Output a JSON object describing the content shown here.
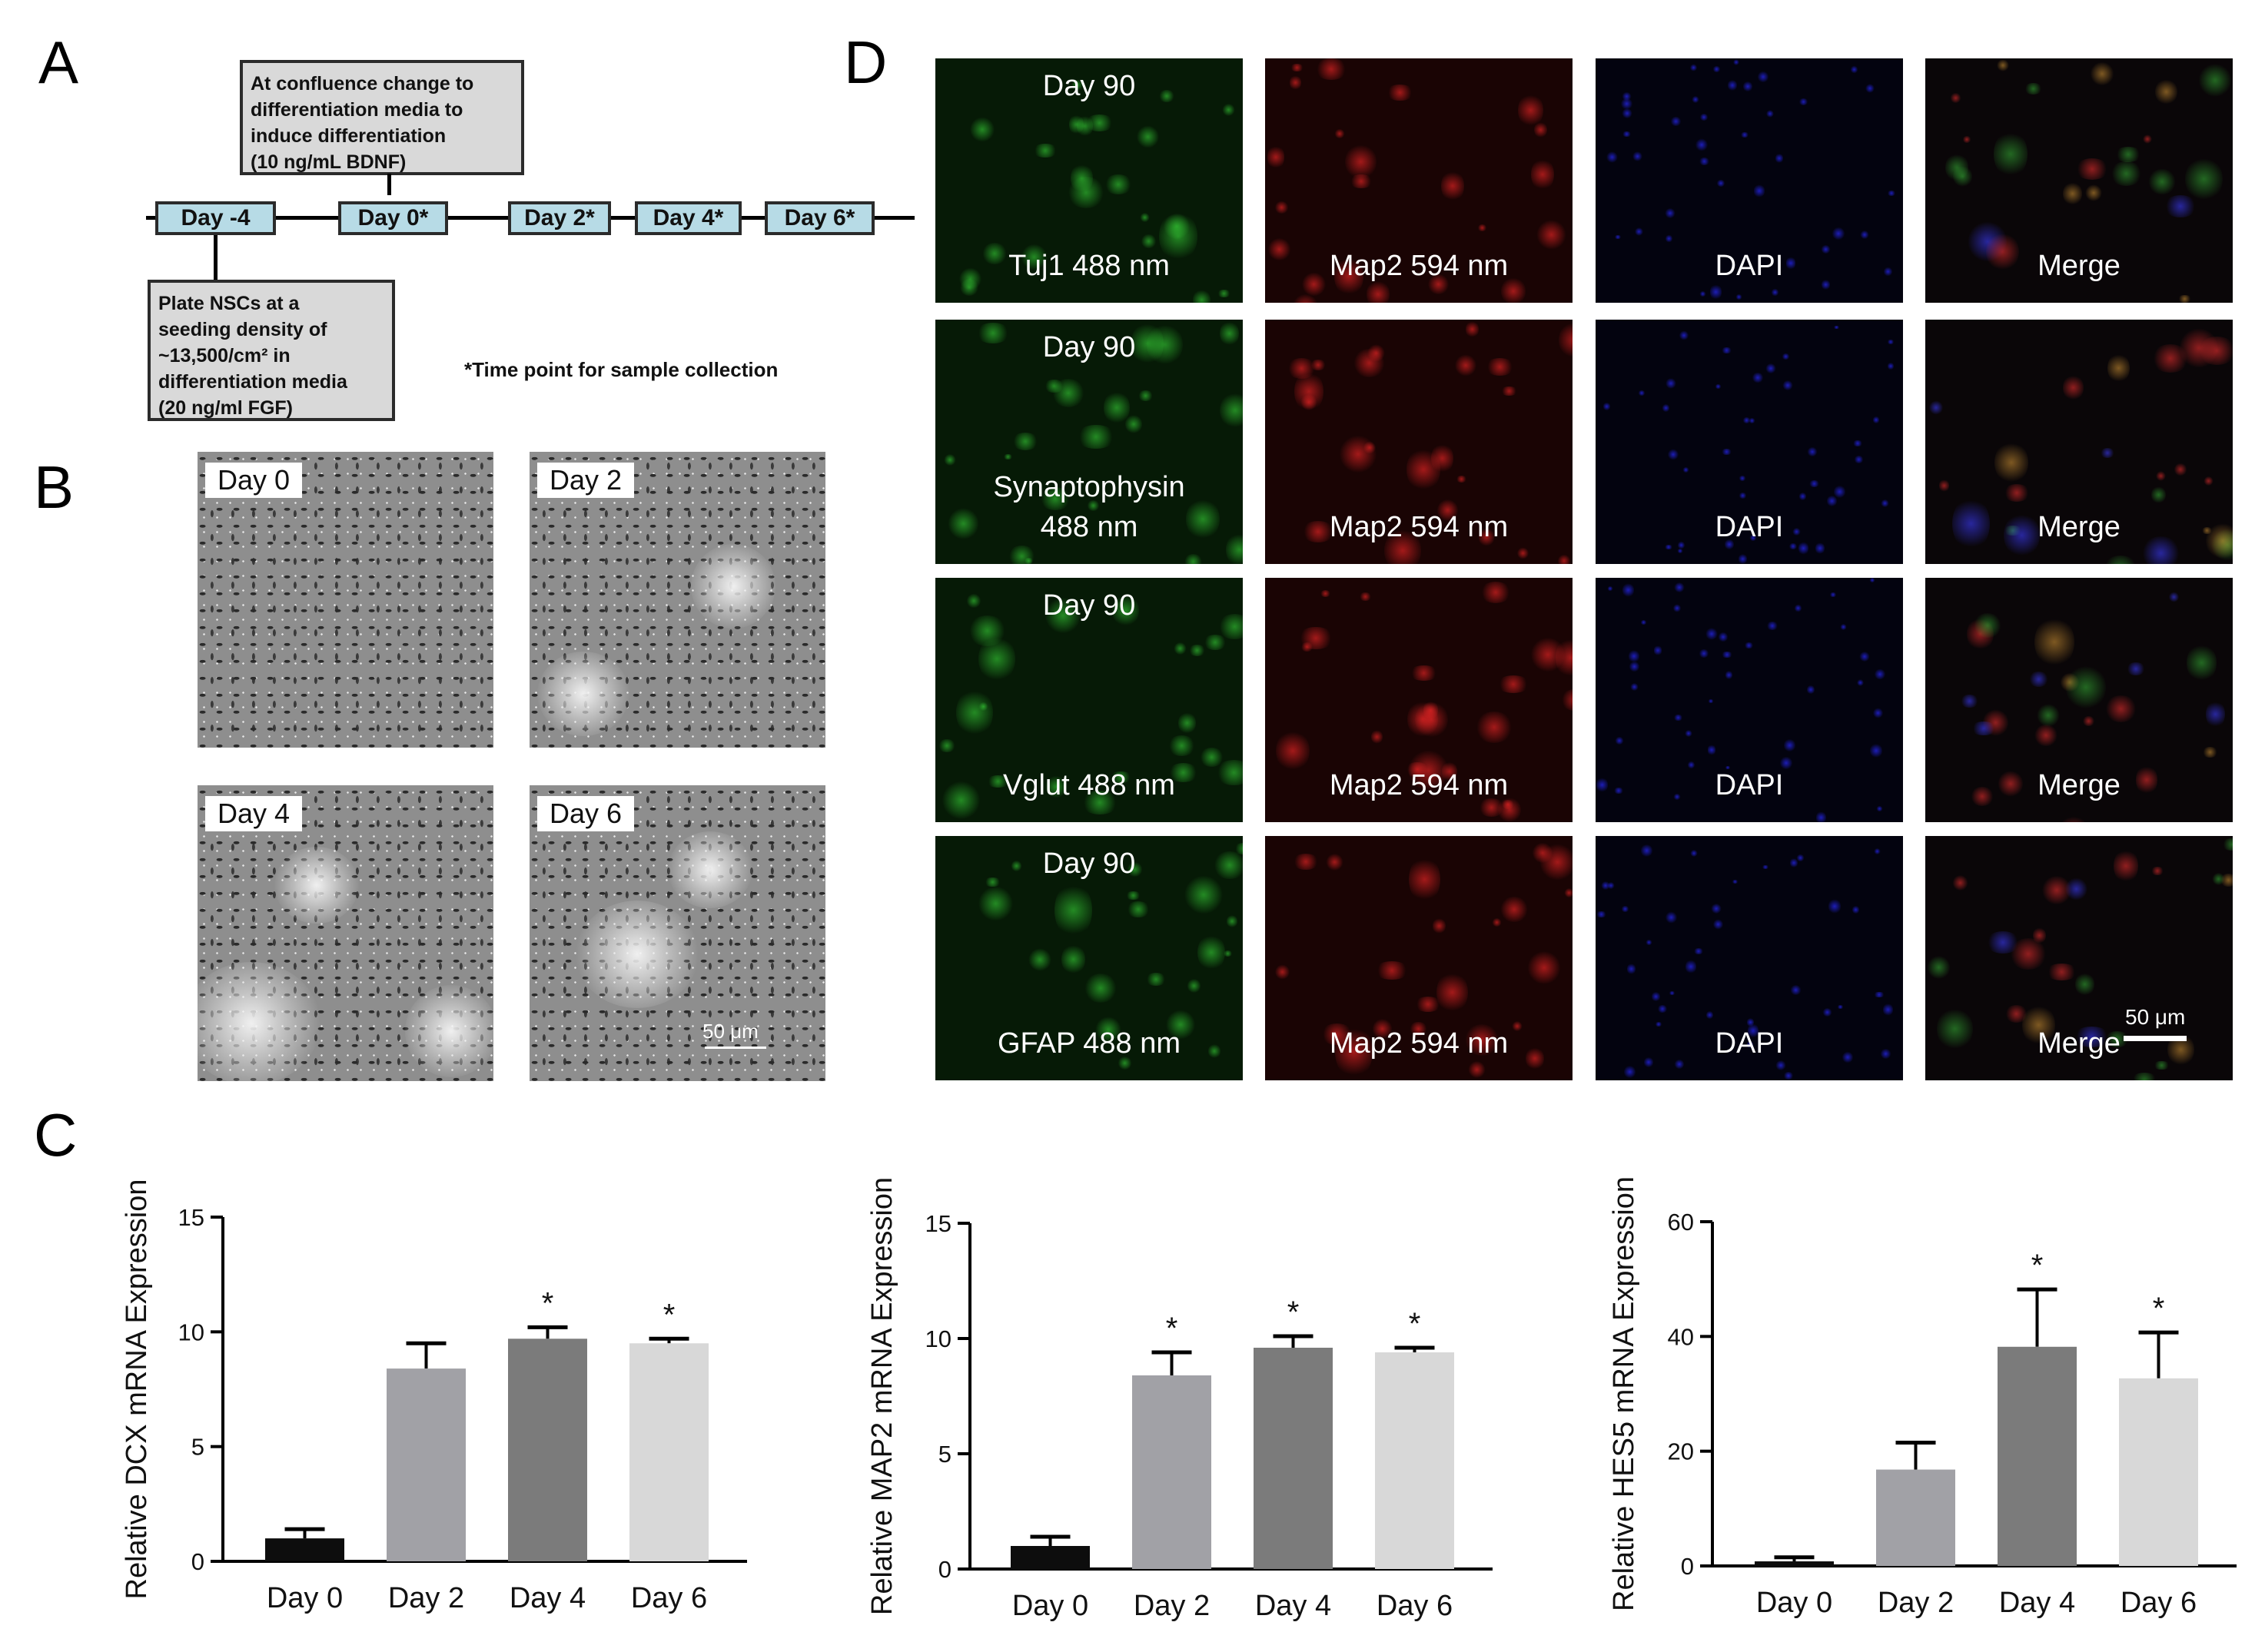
{
  "panels": {
    "a": "A",
    "b": "B",
    "c": "C",
    "d": "D"
  },
  "panel_a": {
    "top_box": [
      "At confluence change to",
      "differentiation media to",
      "induce differentiation",
      "(10 ng/mL BDNF)"
    ],
    "bottom_box": [
      "Plate NSCs at a",
      "seeding density of",
      "~13,500/cm² in",
      "differentiation media",
      "(20 ng/ml FGF)"
    ],
    "days": [
      "Day -4",
      "Day 0*",
      "Day 2*",
      "Day 4*",
      "Day 6*"
    ],
    "footnote": "*Time point  for sample collection"
  },
  "panel_b": {
    "images": [
      {
        "label": "Day 0"
      },
      {
        "label": "Day 2"
      },
      {
        "label": "Day 4"
      },
      {
        "label": "Day 6"
      }
    ],
    "scale_label": "50 μm"
  },
  "panel_d": {
    "rows": [
      {
        "green_top": "Day 90",
        "green_bottom": [
          "Tuj1 488 nm"
        ],
        "red": "Map2 594 nm",
        "blue": "DAPI",
        "merge": "Merge"
      },
      {
        "green_top": "Day 90",
        "green_bottom": [
          "Synaptophysin",
          "488 nm"
        ],
        "red": "Map2 594 nm",
        "blue": "DAPI",
        "merge": "Merge"
      },
      {
        "green_top": "Day 90",
        "green_bottom": [
          "Vglut 488 nm"
        ],
        "red": "Map2 594 nm",
        "blue": "DAPI",
        "merge": "Merge"
      },
      {
        "green_top": "Day 90",
        "green_bottom": [
          "GFAP 488 nm"
        ],
        "red": "Map2 594 nm",
        "blue": "DAPI",
        "merge": "Merge"
      }
    ],
    "scale_label": "50 μm"
  },
  "chart_data": [
    {
      "type": "bar",
      "categories": [
        "Day 0",
        "Day 2",
        "Day 4",
        "Day 6"
      ],
      "values": [
        1.0,
        8.4,
        9.7,
        9.5
      ],
      "errors": [
        0.4,
        1.1,
        0.5,
        0.2
      ],
      "significance": [
        "",
        "",
        "*",
        "*"
      ],
      "ylabel": "Relative DCX mRNA Expression",
      "ylim": [
        0,
        15
      ],
      "yticks": [
        0,
        5,
        10,
        15
      ],
      "colors": [
        "#0d0d0d",
        "#a1a1a6",
        "#7b7b7b",
        "#d8d8d8"
      ]
    },
    {
      "type": "bar",
      "categories": [
        "Day 0",
        "Day 2",
        "Day 4",
        "Day 6"
      ],
      "values": [
        1.0,
        8.4,
        9.6,
        9.4
      ],
      "errors": [
        0.4,
        1.0,
        0.5,
        0.2
      ],
      "significance": [
        "",
        "*",
        "*",
        "*"
      ],
      "ylabel": "Relative MAP2 mRNA Expression",
      "ylim": [
        0,
        15
      ],
      "yticks": [
        0,
        5,
        10,
        15
      ],
      "colors": [
        "#0d0d0d",
        "#a1a1a6",
        "#7b7b7b",
        "#d8d8d8"
      ]
    },
    {
      "type": "bar",
      "categories": [
        "Day 0",
        "Day 2",
        "Day 4",
        "Day 6"
      ],
      "values": [
        0.8,
        16.8,
        38.2,
        32.7
      ],
      "errors": [
        0.7,
        4.7,
        10.0,
        8.0
      ],
      "significance": [
        "",
        "",
        "*",
        "*"
      ],
      "ylabel": "Relative HES5 mRNA Expression",
      "ylim": [
        0,
        60
      ],
      "yticks": [
        0,
        20,
        40,
        60
      ],
      "colors": [
        "#0d0d0d",
        "#a1a1a6",
        "#7b7b7b",
        "#d8d8d8"
      ]
    }
  ]
}
